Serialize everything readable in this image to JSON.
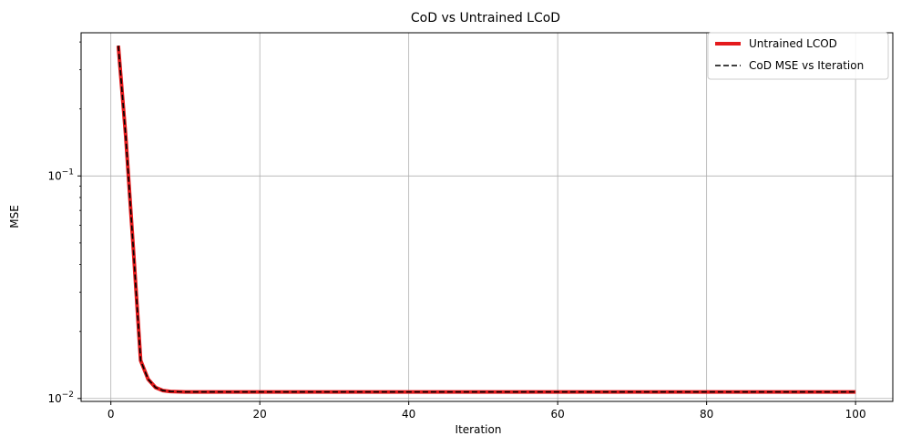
{
  "chart_data": {
    "type": "line",
    "title": "CoD vs Untrained LCoD",
    "xlabel": "Iteration",
    "ylabel": "MSE",
    "xlim": [
      -4.0,
      105.0
    ],
    "ylim": [
      0.0097,
      0.44
    ],
    "yscale": "log",
    "grid": true,
    "legend_position": "top-right",
    "x_ticks": [
      0,
      20,
      40,
      60,
      80,
      100
    ],
    "x_tick_labels": [
      "0",
      "20",
      "40",
      "60",
      "80",
      "100"
    ],
    "y_ticks": [
      0.01,
      0.1
    ],
    "y_tick_mantissa": [
      "10",
      "10"
    ],
    "y_tick_exponent": [
      "−2",
      "−1"
    ],
    "series": [
      {
        "name": "Untrained LCOD",
        "color": "#e41a1c",
        "style": "solid",
        "x": [
          1,
          2,
          3,
          4,
          5,
          6,
          7,
          8,
          9,
          10,
          15,
          20,
          30,
          40,
          50,
          60,
          70,
          80,
          90,
          100
        ],
        "y": [
          0.385,
          0.15,
          0.048,
          0.0148,
          0.0122,
          0.0112,
          0.01085,
          0.01075,
          0.01072,
          0.0107,
          0.0107,
          0.0107,
          0.0107,
          0.0107,
          0.0107,
          0.0107,
          0.0107,
          0.0107,
          0.0107,
          0.0107
        ]
      },
      {
        "name": "CoD MSE vs Iteration",
        "color": "#000000",
        "style": "dashed",
        "x": [
          1,
          2,
          3,
          4,
          5,
          6,
          7,
          8,
          9,
          10,
          15,
          20,
          30,
          40,
          50,
          60,
          70,
          80,
          90,
          100
        ],
        "y": [
          0.385,
          0.15,
          0.048,
          0.0148,
          0.0122,
          0.0112,
          0.01085,
          0.01075,
          0.01072,
          0.0107,
          0.0107,
          0.0107,
          0.0107,
          0.0107,
          0.0107,
          0.0107,
          0.0107,
          0.0107,
          0.0107,
          0.0107
        ]
      }
    ]
  }
}
